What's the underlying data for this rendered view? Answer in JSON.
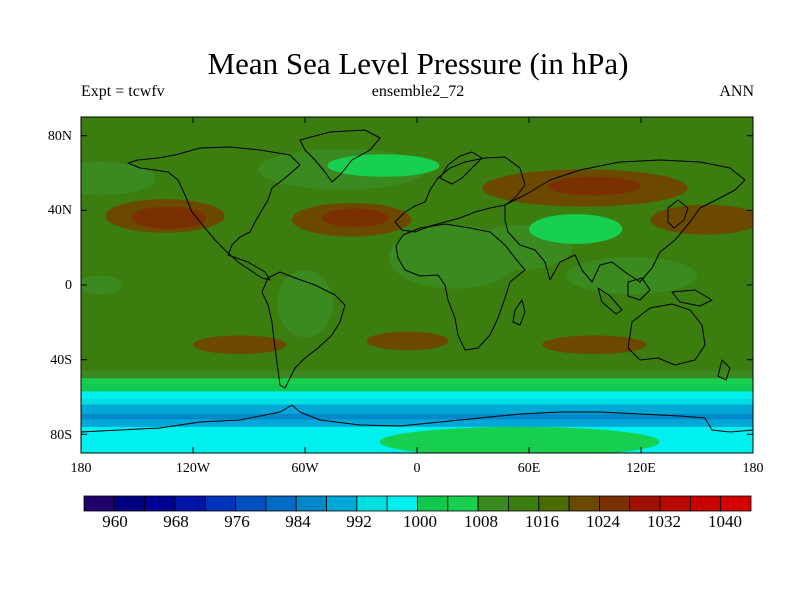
{
  "title": "Mean Sea Level Pressure (in hPa)",
  "subtitle_left": "Expt = tcwfv",
  "subtitle_center": "ensemble2_72",
  "subtitle_right": "ANN",
  "map": {
    "lon_range": [
      -180,
      180
    ],
    "lat_range": [
      -90,
      90
    ],
    "x_ticks": [
      {
        "lon": -180,
        "label": "180"
      },
      {
        "lon": -120,
        "label": "120W"
      },
      {
        "lon": -60,
        "label": "60W"
      },
      {
        "lon": 0,
        "label": "0"
      },
      {
        "lon": 60,
        "label": "60E"
      },
      {
        "lon": 120,
        "label": "120E"
      },
      {
        "lon": 180,
        "label": "180"
      }
    ],
    "y_ticks": [
      {
        "lat": 80,
        "label": "80N"
      },
      {
        "lat": 40,
        "label": "40N"
      },
      {
        "lat": 0,
        "label": "0"
      },
      {
        "lat": -40,
        "label": "40S"
      },
      {
        "lat": -80,
        "label": "80S"
      }
    ],
    "background_value": 1014,
    "zonal_bands": [
      {
        "lat_from": -46,
        "lat_to": -50,
        "value": 1009
      },
      {
        "lat_from": -50,
        "lat_to": -53,
        "value": 1005
      },
      {
        "lat_from": -53,
        "lat_to": -57,
        "value": 1001
      },
      {
        "lat_from": -57,
        "lat_to": -61,
        "value": 997
      },
      {
        "lat_from": -61,
        "lat_to": -64,
        "value": 993
      },
      {
        "lat_from": -64,
        "lat_to": -69,
        "value": 989
      },
      {
        "lat_from": -69,
        "lat_to": -72,
        "value": 985
      },
      {
        "lat_from": -72,
        "lat_to": -76,
        "value": 989
      },
      {
        "lat_from": -76,
        "lat_to": -90,
        "value": 997
      }
    ],
    "features": [
      {
        "name": "north-pacific-high",
        "lon": -135,
        "lat": 37,
        "rlon": 32,
        "rlat": 9,
        "value": 1022
      },
      {
        "name": "north-pacific-high-core",
        "lon": -133,
        "lat": 36,
        "rlon": 20,
        "rlat": 6,
        "value": 1026
      },
      {
        "name": "azores-high",
        "lon": -35,
        "lat": 35,
        "rlon": 32,
        "rlat": 9,
        "value": 1022
      },
      {
        "name": "azores-high-core",
        "lon": -33,
        "lat": 36,
        "rlon": 18,
        "rlat": 5,
        "value": 1026
      },
      {
        "name": "iceland-low",
        "lon": -40,
        "lat": 62,
        "rlon": 45,
        "rlat": 11,
        "value": 1010
      },
      {
        "name": "north-atlantic-low-core",
        "lon": -18,
        "lat": 64,
        "rlon": 30,
        "rlat": 6,
        "value": 1006
      },
      {
        "name": "aleutian-low",
        "lon": -170,
        "lat": 57,
        "rlon": 30,
        "rlat": 9,
        "value": 1010
      },
      {
        "name": "siberian-high",
        "lon": 90,
        "lat": 52,
        "rlon": 55,
        "rlat": 10,
        "value": 1022
      },
      {
        "name": "siberian-high-core",
        "lon": 95,
        "lat": 53,
        "rlon": 25,
        "rlat": 5,
        "value": 1026
      },
      {
        "name": "japan-high",
        "lon": 155,
        "lat": 35,
        "rlon": 30,
        "rlat": 8,
        "value": 1022
      },
      {
        "name": "africa-low",
        "lon": 20,
        "lat": 15,
        "rlon": 35,
        "rlat": 17,
        "value": 1010
      },
      {
        "name": "arabia-low",
        "lon": 55,
        "lat": 20,
        "rlon": 28,
        "rlat": 12,
        "value": 1010
      },
      {
        "name": "tibet-low",
        "lon": 85,
        "lat": 30,
        "rlon": 25,
        "rlat": 8,
        "value": 1006
      },
      {
        "name": "maritime-continent-low",
        "lon": 115,
        "lat": 5,
        "rlon": 35,
        "rlat": 10,
        "value": 1010
      },
      {
        "name": "south-america-low",
        "lon": -60,
        "lat": -10,
        "rlon": 15,
        "rlat": 18,
        "value": 1010
      },
      {
        "name": "east-pacific-low",
        "lon": -170,
        "lat": 0,
        "rlon": 12,
        "rlat": 5,
        "value": 1010
      },
      {
        "name": "south-pacific-high",
        "lon": -95,
        "lat": -32,
        "rlon": 25,
        "rlat": 5,
        "value": 1022
      },
      {
        "name": "south-atlantic-high",
        "lon": -5,
        "lat": -30,
        "rlon": 22,
        "rlat": 5,
        "value": 1022
      },
      {
        "name": "south-indian-high",
        "lon": 95,
        "lat": -32,
        "rlon": 28,
        "rlat": 5,
        "value": 1022
      },
      {
        "name": "antarctic-plateau-high",
        "lon": 55,
        "lat": -84,
        "rlon": 75,
        "rlat": 8,
        "value": 1005
      }
    ]
  },
  "colorbar": {
    "levels": [
      960,
      964,
      968,
      972,
      976,
      980,
      984,
      988,
      992,
      996,
      1000,
      1004,
      1008,
      1012,
      1016,
      1020,
      1024,
      1028,
      1032,
      1036,
      1040
    ],
    "labels": [
      "960",
      "968",
      "976",
      "984",
      "992",
      "1000",
      "1008",
      "1016",
      "1024",
      "1032",
      "1040"
    ],
    "colors": [
      "#20006a",
      "#000080",
      "#000096",
      "#0014aa",
      "#0033bb",
      "#0050c0",
      "#006ac4",
      "#0088c8",
      "#00a8d8",
      "#00e0e0",
      "#00f0f0",
      "#10c850",
      "#18d050",
      "#3a8a20",
      "#3c7d10",
      "#4a6b00",
      "#6b4a00",
      "#7a3000",
      "#a01000",
      "#b80800",
      "#c80000",
      "#d40000"
    ]
  }
}
